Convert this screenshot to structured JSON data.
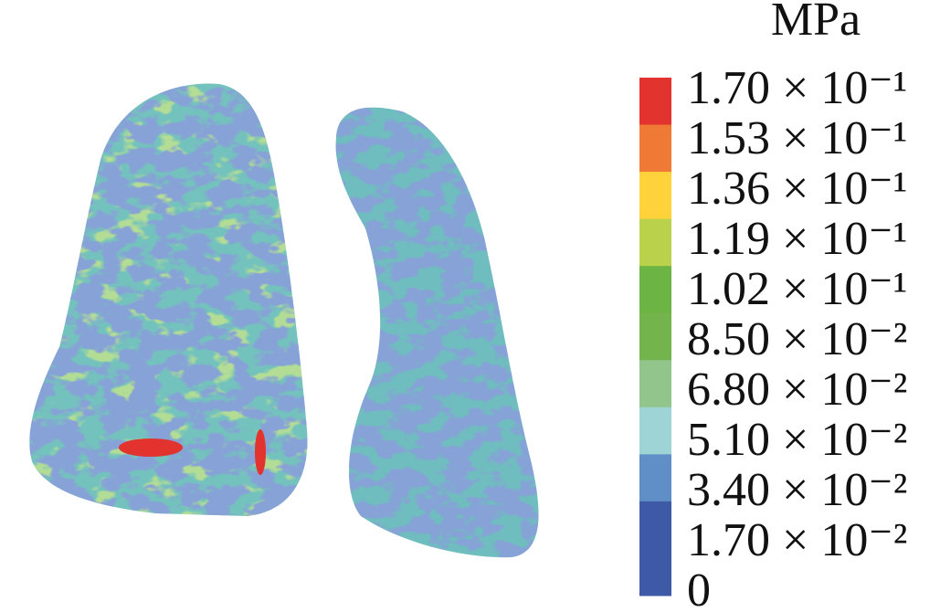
{
  "legend": {
    "unit": "MPa",
    "entries": [
      {
        "label": "1.70 × 10⁻¹",
        "color": "#e2332e"
      },
      {
        "label": "1.53 × 10⁻¹",
        "color": "#ee7a35"
      },
      {
        "label": "1.36 × 10⁻¹",
        "color": "#fdd23a"
      },
      {
        "label": "1.19 × 10⁻¹",
        "color": "#b9d14b"
      },
      {
        "label": "1.02 × 10⁻¹",
        "color": "#6cb443"
      },
      {
        "label": "8.50 × 10⁻²",
        "color": "#74b44c"
      },
      {
        "label": "6.80 × 10⁻²",
        "color": "#91c58c"
      },
      {
        "label": "5.10 × 10⁻²",
        "color": "#9fd4d6"
      },
      {
        "label": "3.40 × 10⁻²",
        "color": "#5f8fc6"
      },
      {
        "label": "1.70 × 10⁻²",
        "color": "#3e5aa6"
      },
      {
        "label": "0",
        "color": "#3e5aa6"
      }
    ]
  }
}
